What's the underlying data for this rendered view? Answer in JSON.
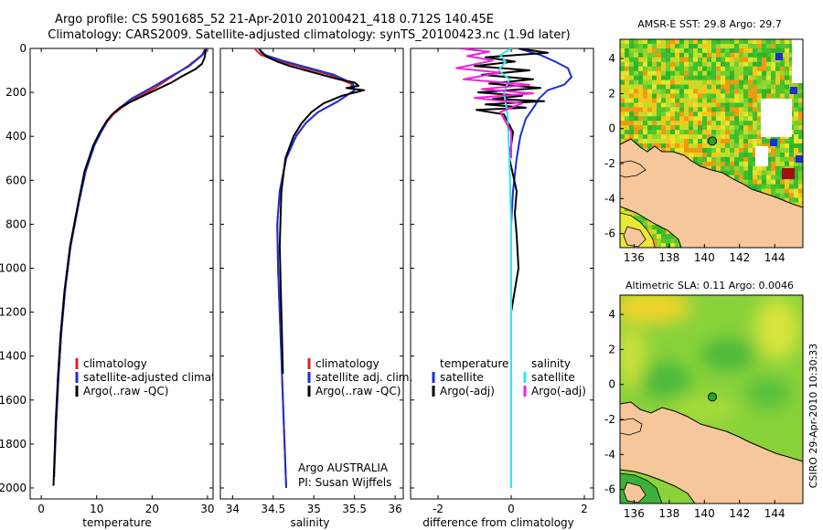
{
  "title": {
    "line1": "Argo profile: CS 5901685_52 21-Apr-2010 20100421_418 0.712S 140.45E",
    "line2": "Climatology: CARS2009. Satellite-adjusted climatology: synTS_20100423.nc (1.9d later)"
  },
  "side_label": "CSIRO 29-Apr-2010 10:30:33",
  "colors": {
    "climatology": "#e02020",
    "satellite": "#1a2fd6",
    "argo": "#000000",
    "sat_salinity": "#33e5ee",
    "argo_salinity_adj": "#ee22dd",
    "land": "#f5c79a",
    "float_marker": "#22aa22"
  },
  "chart_data": [
    {
      "id": "temperature",
      "type": "line",
      "xlabel": "temperature",
      "ylabel": "",
      "xlim": [
        -2,
        31
      ],
      "ylim": [
        2050,
        0
      ],
      "xticks": [
        0,
        10,
        20,
        30
      ],
      "yticks": [
        0,
        200,
        400,
        600,
        800,
        1000,
        1200,
        1400,
        1600,
        1800,
        2000
      ],
      "legend": [
        "climatology",
        "satellite-adjusted climatology",
        "Argo(..raw -QC)"
      ],
      "series": [
        {
          "name": "climatology",
          "color_key": "climatology",
          "x": [
            29.6,
            29.0,
            26.5,
            23.5,
            20.5,
            16.8,
            14.5,
            13.0,
            12.0,
            10.8,
            9.6,
            8.0,
            6.8,
            5.3,
            4.3,
            3.6,
            3.1,
            2.7,
            2.3
          ],
          "y": [
            0,
            30,
            80,
            130,
            180,
            230,
            270,
            300,
            330,
            380,
            440,
            560,
            700,
            900,
            1100,
            1300,
            1500,
            1700,
            1950
          ]
        },
        {
          "name": "satellite-adjusted climatology",
          "color_key": "satellite",
          "x": [
            29.7,
            29.1,
            26.7,
            23.2,
            19.8,
            16.2,
            14.2,
            12.8,
            11.9,
            10.8,
            9.6,
            8.0,
            6.8,
            5.3,
            4.3,
            3.6,
            3.1,
            2.7,
            2.3
          ],
          "y": [
            0,
            30,
            80,
            130,
            180,
            230,
            270,
            300,
            330,
            380,
            440,
            560,
            700,
            900,
            1100,
            1300,
            1500,
            1700,
            1950
          ]
        },
        {
          "name": "Argo(..raw -QC)",
          "color_key": "argo",
          "x": [
            29.7,
            29.5,
            29.0,
            27.8,
            25.5,
            23.5,
            21.0,
            18.5,
            16.0,
            14.2,
            12.8,
            11.8,
            10.6,
            9.4,
            7.8,
            6.7,
            5.2,
            4.2,
            3.5,
            3.0,
            2.6,
            2.2
          ],
          "y": [
            5,
            40,
            70,
            95,
            125,
            155,
            185,
            215,
            245,
            270,
            300,
            330,
            380,
            440,
            560,
            700,
            900,
            1100,
            1300,
            1500,
            1700,
            1990
          ]
        }
      ]
    },
    {
      "id": "salinity",
      "type": "line",
      "xlabel": "salinity",
      "ylabel": "",
      "xlim": [
        33.85,
        36.1
      ],
      "ylim": [
        2050,
        0
      ],
      "xticks": [
        34,
        34.5,
        35,
        35.5,
        36
      ],
      "legend": [
        "climatology",
        "satellite adj. clim.",
        "Argo(..raw -QC)"
      ],
      "annotation": [
        "Argo AUSTRALIA",
        "PI: Susan Wijffels"
      ],
      "series": [
        {
          "name": "climatology",
          "color_key": "climatology",
          "x": [
            34.27,
            34.35,
            34.6,
            34.9,
            35.2,
            35.45,
            35.5,
            35.3,
            35.05,
            34.9,
            34.78,
            34.66,
            34.58,
            34.55,
            34.56,
            34.58,
            34.6,
            34.62,
            34.64,
            34.66
          ],
          "y": [
            0,
            30,
            60,
            90,
            120,
            160,
            190,
            240,
            290,
            340,
            400,
            500,
            650,
            800,
            1000,
            1200,
            1400,
            1600,
            1800,
            2000
          ]
        },
        {
          "name": "satellite adj. clim.",
          "color_key": "satellite",
          "x": [
            34.32,
            34.4,
            34.65,
            34.95,
            35.25,
            35.48,
            35.5,
            35.3,
            35.05,
            34.9,
            34.78,
            34.66,
            34.58,
            34.55,
            34.56,
            34.58,
            34.6,
            34.62,
            34.64,
            34.66
          ],
          "y": [
            0,
            30,
            60,
            90,
            120,
            160,
            190,
            240,
            290,
            340,
            400,
            500,
            650,
            800,
            1000,
            1200,
            1400,
            1600,
            1800,
            2000
          ]
        },
        {
          "name": "Argo(..raw -QC)",
          "color_key": "argo",
          "x": [
            34.33,
            34.36,
            34.43,
            34.55,
            34.7,
            34.9,
            35.1,
            35.3,
            35.5,
            35.55,
            35.4,
            35.62,
            35.35,
            35.12,
            34.97,
            34.85,
            34.75,
            34.65,
            34.6,
            34.58,
            34.6,
            34.62
          ],
          "y": [
            5,
            20,
            40,
            60,
            80,
            100,
            120,
            140,
            155,
            170,
            180,
            190,
            215,
            250,
            290,
            340,
            400,
            500,
            650,
            900,
            1200,
            1480
          ]
        }
      ]
    },
    {
      "id": "difference",
      "type": "line",
      "xlabel": "difference from climatology",
      "ylabel": "",
      "xlim": [
        -2.75,
        2.25
      ],
      "ylim": [
        2050,
        0
      ],
      "xticks": [
        -2,
        0,
        2
      ],
      "legend_temperature": [
        "temperature",
        "satellite",
        "Argo(-adj)"
      ],
      "legend_salinity": [
        "salinity",
        "satellite",
        "Argo(-adj)"
      ],
      "series": [
        {
          "name": "temperature satellite",
          "color_key": "satellite",
          "x": [
            0.2,
            0.8,
            1.2,
            1.55,
            1.65,
            1.45,
            1.0,
            0.75,
            0.65,
            0.4,
            0.25,
            0.15,
            0.05,
            0.0
          ],
          "y": [
            0,
            30,
            60,
            90,
            130,
            165,
            190,
            230,
            260,
            320,
            400,
            500,
            650,
            800
          ]
        },
        {
          "name": "temperature Argo(-adj)",
          "color_key": "argo",
          "x": [
            0.2,
            1.0,
            -0.7,
            0.1,
            -1.0,
            0.5,
            -0.8,
            0.6,
            -0.6,
            0.8,
            -0.9,
            0.3,
            -0.5,
            0.9,
            -0.7,
            0.4,
            -0.95,
            -0.2,
            0.05,
            -0.05,
            0.15,
            0.1,
            0.15,
            0.2,
            0.1,
            0.0
          ],
          "y": [
            0,
            20,
            40,
            60,
            80,
            100,
            120,
            140,
            160,
            180,
            200,
            215,
            230,
            240,
            255,
            270,
            280,
            300,
            380,
            500,
            650,
            750,
            850,
            1000,
            1100,
            1200
          ]
        },
        {
          "name": "salinity satellite",
          "color_key": "sat_salinity",
          "x": [
            0.0,
            -0.3,
            -0.15,
            -0.35,
            -0.05,
            -0.2,
            -0.1,
            -0.05,
            0.0,
            0.0,
            0.0
          ],
          "y": [
            0,
            30,
            60,
            100,
            140,
            200,
            300,
            500,
            800,
            1300,
            2000
          ]
        },
        {
          "name": "salinity Argo(-adj)",
          "color_key": "argo_salinity_adj",
          "x": [
            -1.4,
            -0.6,
            -1.2,
            -0.5,
            -1.5,
            -0.3,
            -1.3,
            0.5,
            -0.8,
            0.6,
            -1.0,
            0.3,
            -0.3,
            0.0,
            0.0
          ],
          "y": [
            0,
            15,
            35,
            55,
            90,
            110,
            140,
            165,
            185,
            205,
            225,
            250,
            290,
            380,
            500
          ]
        }
      ]
    },
    {
      "id": "sst_map",
      "type": "heatmap",
      "title": "AMSR-E SST: 29.8 Argo: 29.7",
      "xlim": [
        135.2,
        145.6
      ],
      "ylim": [
        -6.8,
        5.1
      ],
      "xticks": [
        136,
        138,
        140,
        142,
        144
      ],
      "yticks": [
        4,
        2,
        0,
        -2,
        -4,
        -6
      ],
      "float_position": [
        140.45,
        -0.712
      ]
    },
    {
      "id": "sla_map",
      "type": "heatmap",
      "title": "Altimetric SLA: 0.11 Argo: 0.0046",
      "xlim": [
        135.2,
        145.6
      ],
      "ylim": [
        -6.8,
        5.1
      ],
      "xticks": [
        136,
        138,
        140,
        142,
        144
      ],
      "yticks": [
        4,
        2,
        0,
        -2,
        -4,
        -6
      ],
      "float_position": [
        140.45,
        -0.712
      ]
    }
  ]
}
